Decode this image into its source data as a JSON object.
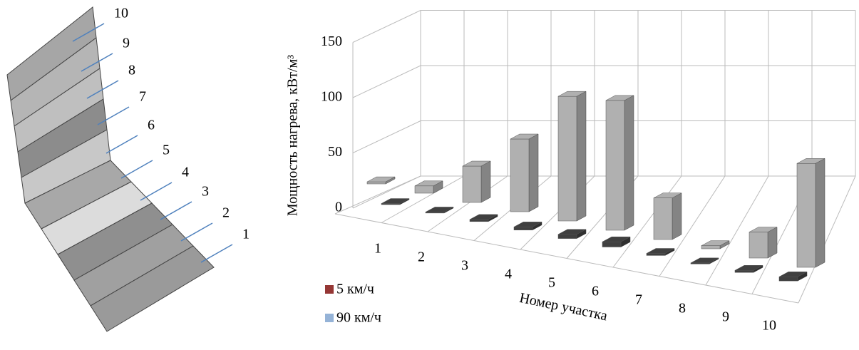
{
  "diagram": {
    "labels": [
      "1",
      "2",
      "3",
      "4",
      "5",
      "6",
      "7",
      "8",
      "9",
      "10"
    ]
  },
  "chart_data": {
    "type": "bar3d",
    "y_label": "Мощность нагрева, кВт/м³",
    "x_label": "Номер участка",
    "categories": [
      "1",
      "2",
      "3",
      "4",
      "5",
      "6",
      "7",
      "8",
      "9",
      "10"
    ],
    "series": [
      {
        "name": "5 км/ч",
        "color": "#953735",
        "bar_color": "#404040",
        "values": [
          1,
          1,
          2,
          3,
          4,
          5,
          2,
          1,
          2,
          4
        ]
      },
      {
        "name": "90 км/ч",
        "color": "#95b3d7",
        "bar_color": "#b0b0b0",
        "values": [
          2,
          7,
          35,
          70,
          120,
          125,
          40,
          3,
          25,
          100
        ]
      }
    ],
    "ylim": [
      0,
      150
    ],
    "yticks": [
      0,
      50,
      100,
      150
    ],
    "grid": true
  }
}
